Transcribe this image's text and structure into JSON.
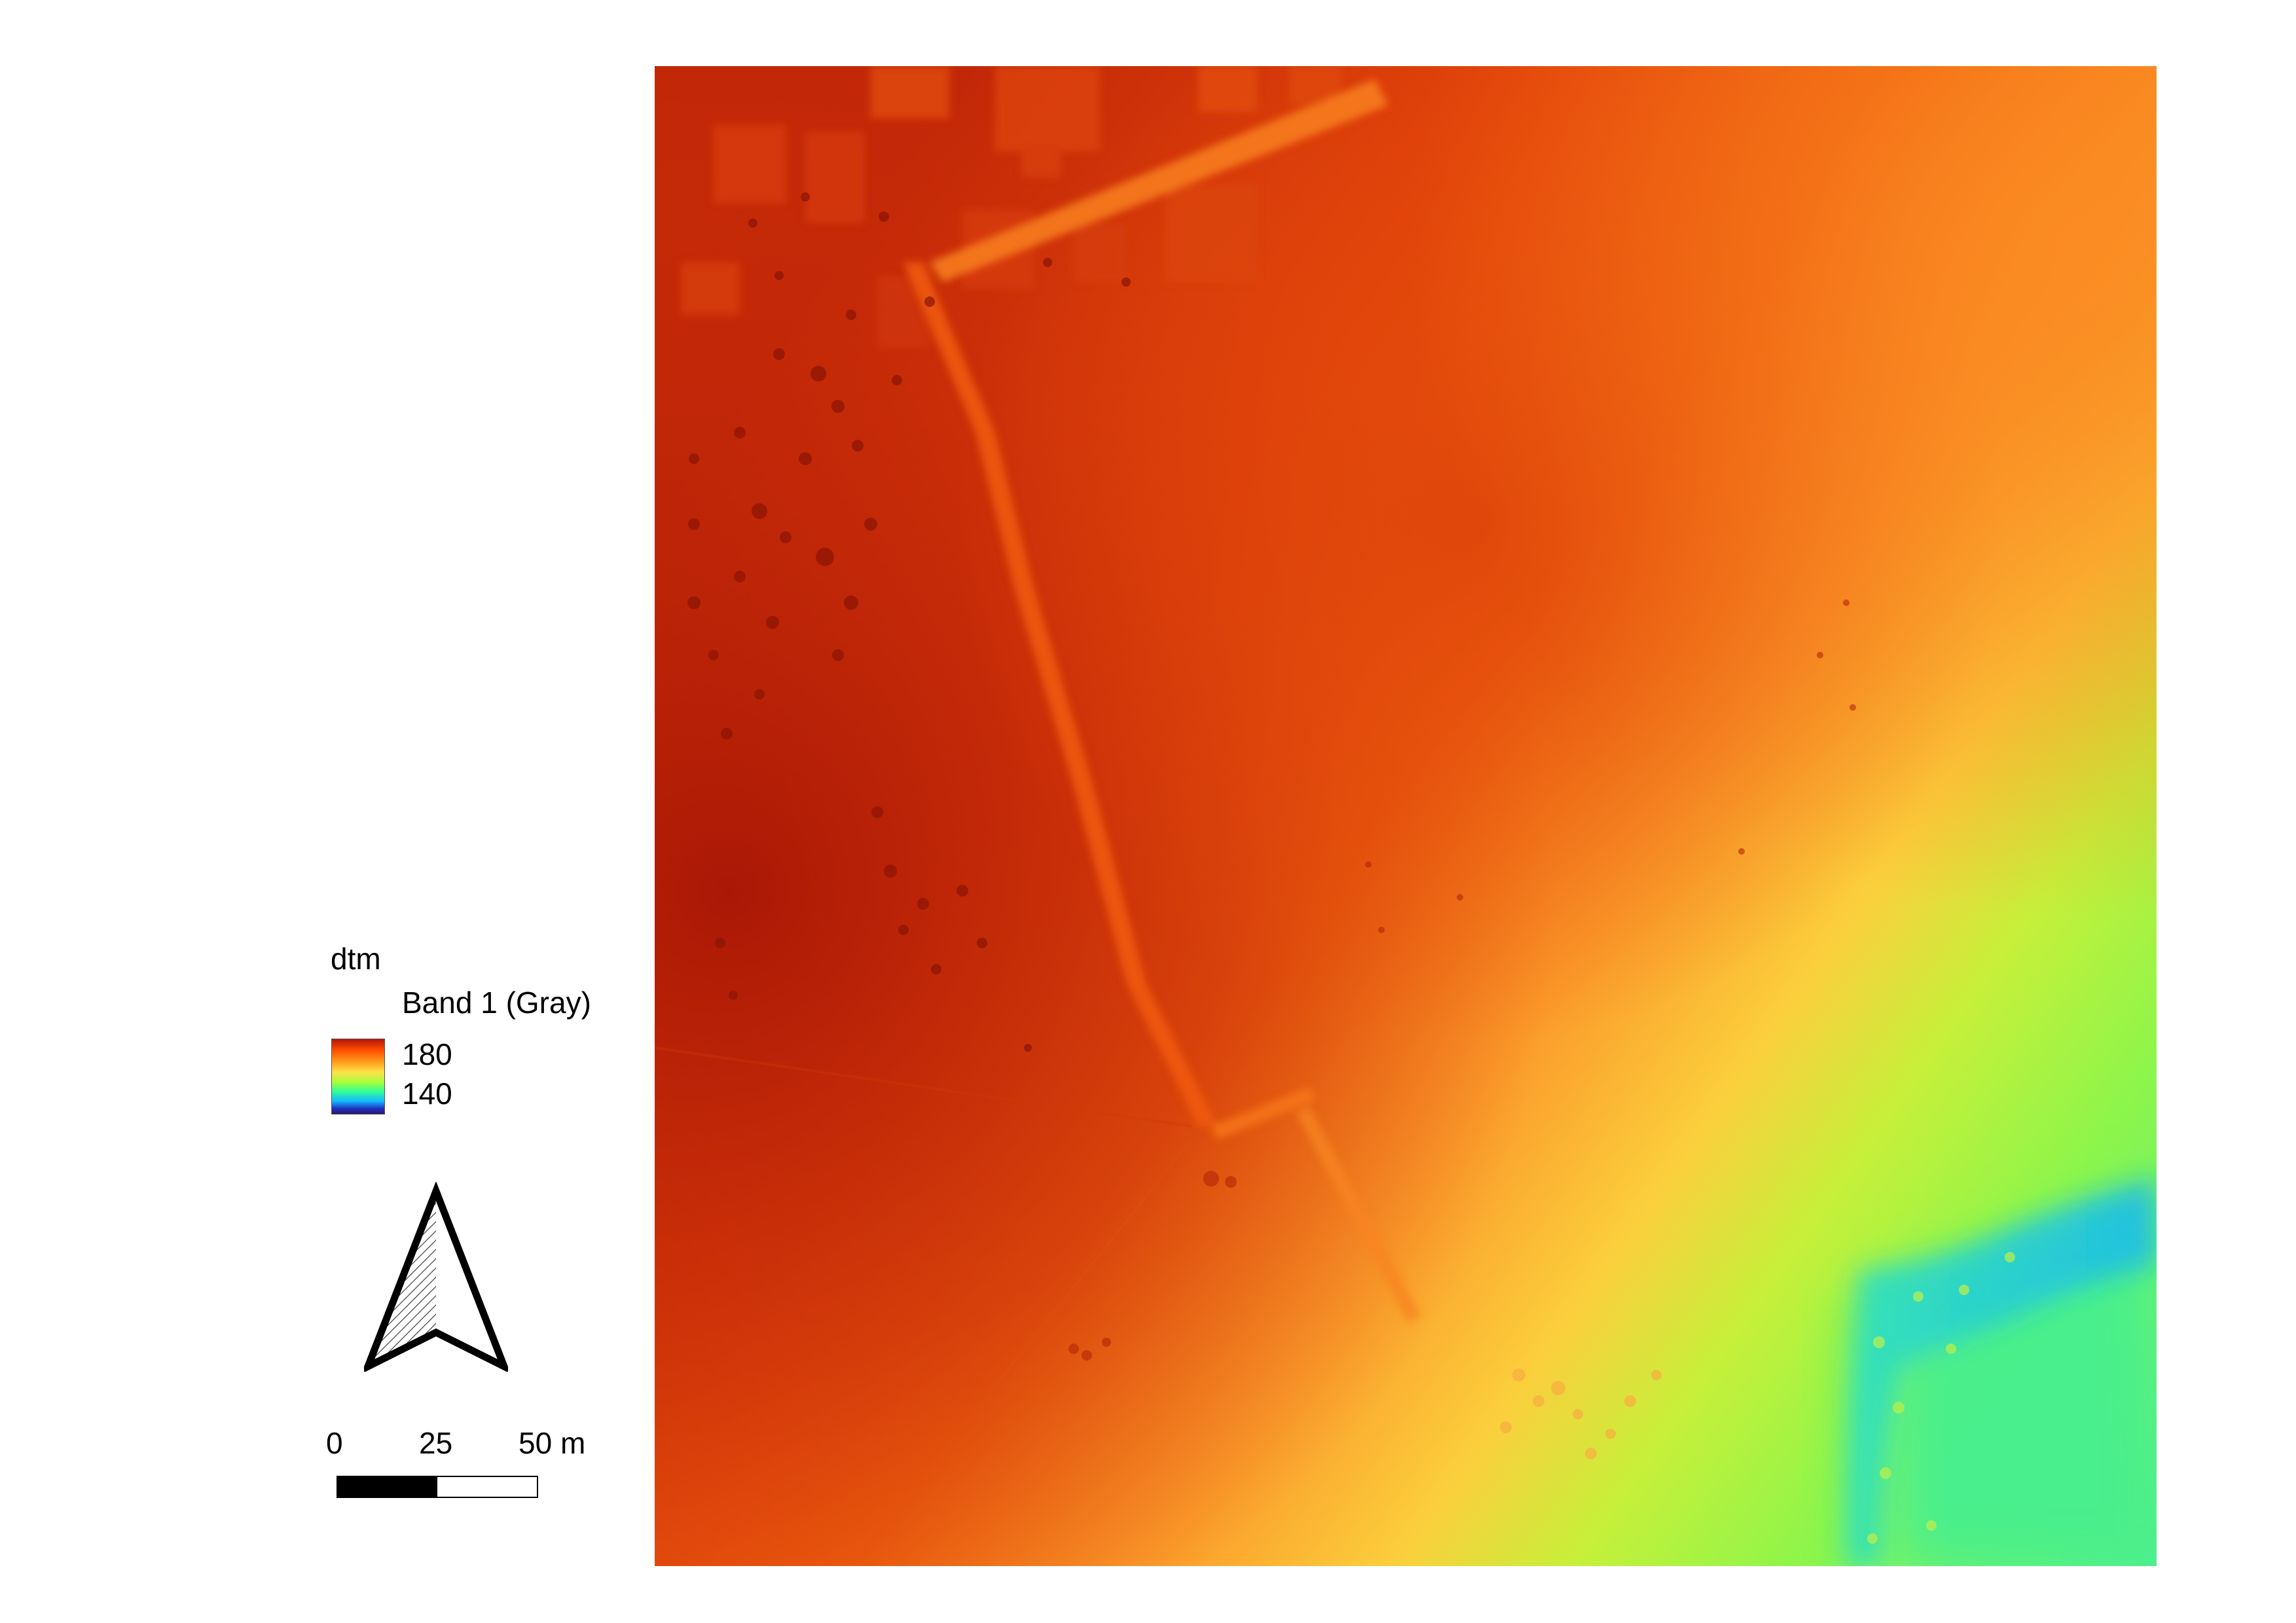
{
  "legend": {
    "layer_name": "dtm",
    "band_label": "Band 1 (Gray)",
    "max_value": "180",
    "min_value": "140",
    "ramp_colors": [
      "#b2180a",
      "#ff4a00",
      "#ff9a1a",
      "#ffe14a",
      "#a6ff3a",
      "#30ff98",
      "#14b8ff",
      "#2030c0",
      "#281a6a"
    ]
  },
  "north_arrow": {
    "icon": "north-arrow-icon"
  },
  "scale_bar": {
    "labels": [
      "0",
      "25",
      "50 m"
    ],
    "colors": [
      "#000000",
      "#ffffff"
    ]
  },
  "map": {
    "icon": "elevation-raster",
    "colors": {
      "high": "#b2180a",
      "mid_high": "#ff4a00",
      "mid": "#ff9a1a",
      "mid_low": "#ffe14a",
      "low_green": "#a6ff3a",
      "low_cyan": "#30ff98",
      "lowest": "#14b8ff"
    }
  }
}
